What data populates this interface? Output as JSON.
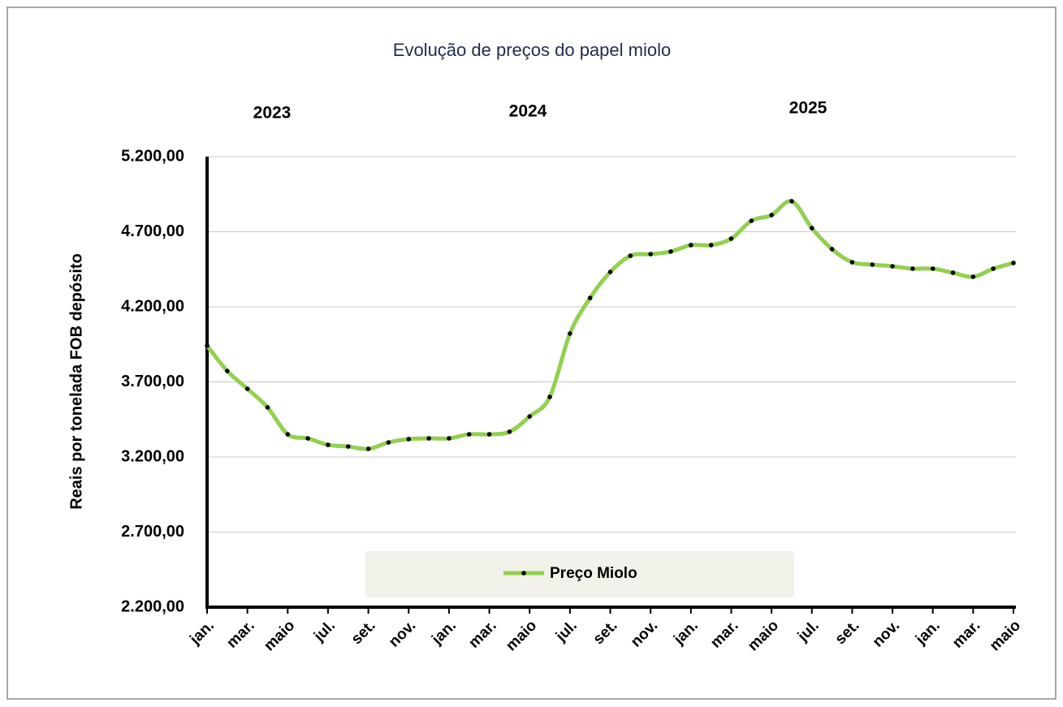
{
  "chart_data": {
    "type": "line",
    "title": "Evolução de preços do papel miolo",
    "y_label": "Reais por tonelada FOB depósito",
    "annotations": [
      "2023",
      "2024",
      "2025"
    ],
    "categories": [
      "jan.",
      null,
      "mar.",
      null,
      "maio",
      null,
      "jul.",
      null,
      "set.",
      null,
      "nov.",
      null,
      "jan.",
      null,
      "mar.",
      null,
      "maio",
      null,
      "jul.",
      null,
      "set.",
      null,
      "nov.",
      null,
      "jan.",
      null,
      "mar.",
      null,
      "maio",
      null,
      "jul.",
      null,
      "set.",
      null,
      "nov.",
      null,
      "jan.",
      null,
      "mar.",
      null,
      "maio"
    ],
    "series": [
      {
        "name": "Preço Miolo",
        "color": "#92d050",
        "values": [
          3941,
          3773,
          3654,
          3530,
          3351,
          3324,
          3281,
          3270,
          3254,
          3297,
          3319,
          3324,
          3324,
          3351,
          3351,
          3368,
          3470,
          3600,
          4022,
          4259,
          4432,
          4540,
          4551,
          4568,
          4611,
          4611,
          4654,
          4773,
          4811,
          4903,
          4724,
          4584,
          4497,
          4481,
          4470,
          4454,
          4454,
          4427,
          4400,
          4454,
          4492
        ]
      }
    ],
    "ylim": [
      2200,
      5200
    ],
    "yticks": [
      {
        "value": 2200,
        "label": "2.200,00"
      },
      {
        "value": 2700,
        "label": "2.700,00"
      },
      {
        "value": 3200,
        "label": "3.200,00"
      },
      {
        "value": 3700,
        "label": "3.700,00"
      },
      {
        "value": 4200,
        "label": "4.200,00"
      },
      {
        "value": 4700,
        "label": "4.700,00"
      },
      {
        "value": 5200,
        "label": "5.200,00"
      }
    ],
    "grid": true,
    "legend": "bottom"
  }
}
